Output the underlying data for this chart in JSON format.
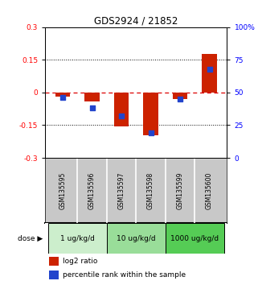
{
  "title": "GDS2924 / 21852",
  "samples": [
    "GSM135595",
    "GSM135596",
    "GSM135597",
    "GSM135598",
    "GSM135599",
    "GSM135600"
  ],
  "log2_ratio": [
    -0.02,
    -0.04,
    -0.155,
    -0.195,
    -0.03,
    0.175
  ],
  "percentile_rank": [
    46,
    38,
    32,
    19,
    45,
    68
  ],
  "ylim_left": [
    -0.3,
    0.3
  ],
  "ylim_right": [
    0,
    100
  ],
  "yticks_left": [
    -0.3,
    -0.15,
    0,
    0.15,
    0.3
  ],
  "yticks_right": [
    0,
    25,
    50,
    75,
    100
  ],
  "doses": [
    {
      "label": "1 ug/kg/d",
      "samples": [
        0,
        1
      ],
      "color": "#cceecc"
    },
    {
      "label": "10 ug/kg/d",
      "samples": [
        2,
        3
      ],
      "color": "#99dd99"
    },
    {
      "label": "1000 ug/kg/d",
      "samples": [
        4,
        5
      ],
      "color": "#55cc55"
    }
  ],
  "bar_color": "#cc2200",
  "dot_color": "#2244cc",
  "bar_width": 0.5,
  "background_label": "#c8c8c8",
  "hline_dotted_vals": [
    -0.15,
    0.15
  ],
  "hline_zero_color": "#dd0000",
  "legend_log2": "log2 ratio",
  "legend_pct": "percentile rank within the sample",
  "dose_label": "dose"
}
